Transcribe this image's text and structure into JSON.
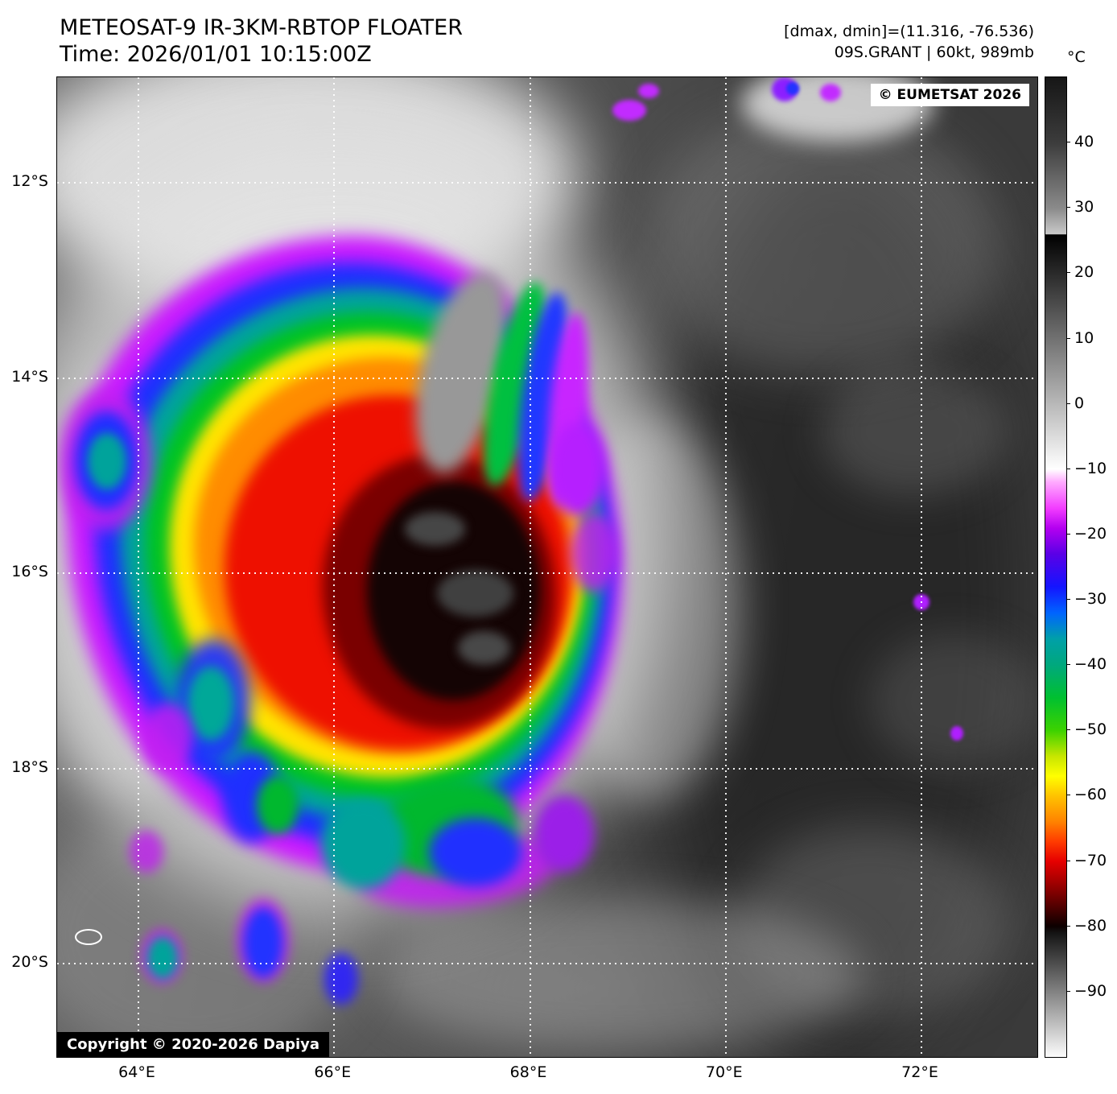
{
  "header": {
    "title": "METEOSAT-9 IR-3KM-RBTOP FLOATER",
    "time_line": "Time: 2026/01/01 10:15:00Z",
    "dmax_dmin": "[dmax, dmin]=(11.316, -76.536)",
    "storm_info": "09S.GRANT | 60kt, 989mb"
  },
  "map": {
    "eumetsat_credit": "© EUMETSAT 2026",
    "dapiya_credit": "Copyright © 2020-2026 Dapiya"
  },
  "axes": {
    "x_labels": [
      "64°E",
      "66°E",
      "68°E",
      "70°E",
      "72°E"
    ],
    "y_labels": [
      "12°S",
      "14°S",
      "16°S",
      "18°S",
      "20°S"
    ]
  },
  "colorbar": {
    "unit": "°C",
    "range": [
      50,
      -100
    ],
    "ticks": [
      40,
      30,
      20,
      10,
      0,
      -10,
      -20,
      -30,
      -40,
      -50,
      -60,
      -70,
      -80,
      -90
    ],
    "stops": [
      {
        "t": 50,
        "color": "#161616"
      },
      {
        "t": 40,
        "color": "#3c3c3c"
      },
      {
        "t": 30,
        "color": "#8a8a8a"
      },
      {
        "t": 26,
        "color": "#c9c9c9"
      },
      {
        "t": 25.9,
        "color": "#000000"
      },
      {
        "t": -10,
        "color": "#ffffff"
      },
      {
        "t": -12,
        "color": "#ffaaff"
      },
      {
        "t": -16,
        "color": "#f23cff"
      },
      {
        "t": -19,
        "color": "#b400f0"
      },
      {
        "t": -23,
        "color": "#5a00e6"
      },
      {
        "t": -28,
        "color": "#1414ff"
      },
      {
        "t": -32,
        "color": "#0064ff"
      },
      {
        "t": -36,
        "color": "#00a0a8"
      },
      {
        "t": -40,
        "color": "#00a87d"
      },
      {
        "t": -45,
        "color": "#00c030"
      },
      {
        "t": -50,
        "color": "#3cd200"
      },
      {
        "t": -54,
        "color": "#c8e600"
      },
      {
        "t": -57,
        "color": "#ffff00"
      },
      {
        "t": -60,
        "color": "#ffc300"
      },
      {
        "t": -64,
        "color": "#ff8200"
      },
      {
        "t": -67,
        "color": "#ff3c00"
      },
      {
        "t": -70,
        "color": "#e60000"
      },
      {
        "t": -73,
        "color": "#a80000"
      },
      {
        "t": -77,
        "color": "#500000"
      },
      {
        "t": -80,
        "color": "#0c0000"
      },
      {
        "t": -81,
        "color": "#141414"
      },
      {
        "t": -100,
        "color": "#fcfcfc"
      }
    ],
    "palette": {
      "warm_gray": "#8a8a8a",
      "magenta": "#cb1aff",
      "blue": "#1d2fff",
      "teal": "#00a39b",
      "green": "#00c422",
      "yellow": "#ffe400",
      "orange": "#ff8c00",
      "red": "#ee1000",
      "dark_red": "#7a0000",
      "core_black": "#140404"
    }
  }
}
